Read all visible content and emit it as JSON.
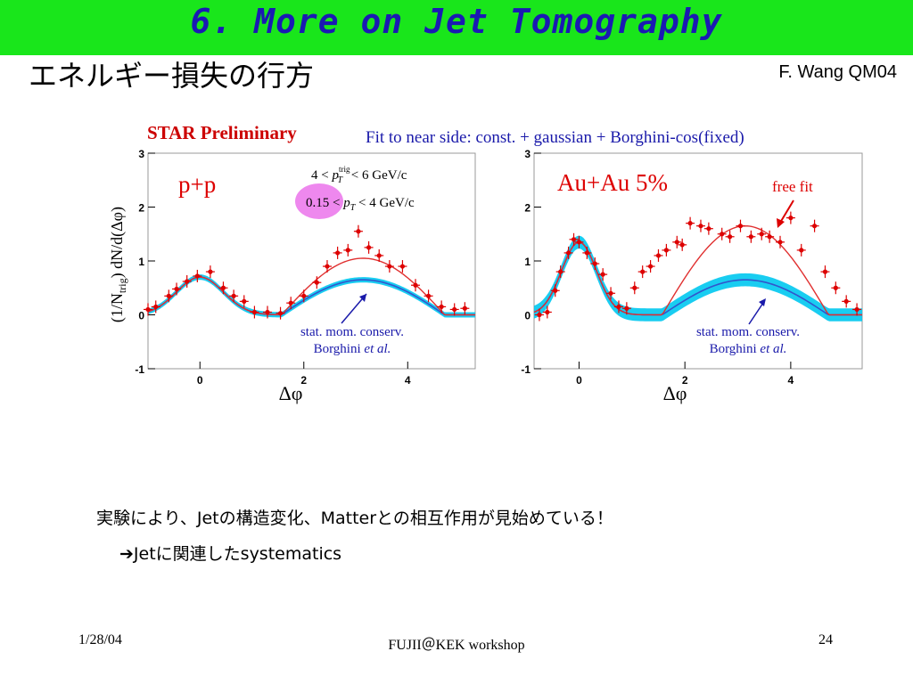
{
  "slide": {
    "title": "6. More on Jet Tomography",
    "subtitle": "エネルギー損失の行方",
    "author": "F. Wang QM04",
    "body_line1": "実験により、Jetの構造変化、Matterとの相互作用が見始めている！",
    "body_line2_arrow": "➔",
    "body_line2": "Jetに関連したsystematics",
    "footer_date": "1/28/04",
    "footer_center": "FUJII＠KEK workshop",
    "footer_page": "24"
  },
  "colors": {
    "title_bar": "#19e61b",
    "title_text": "#1a1ab3",
    "fit_red": "#e03030",
    "model_blue": "#3355cc",
    "band_cyan": "#00c8f0",
    "annotation_blue": "#1a1aaa",
    "highlight_pink": "#ee88ee"
  },
  "figure": {
    "header": "STAR Preliminary",
    "fit_note": "Fit to near side:  const. + gaussian + Borghini-cos(fixed)",
    "ylabel": "(1/N",
    "ylabel_sub": "trig",
    "ylabel_rest": ") dN/d(Δφ)",
    "xlabel": "Δφ",
    "cut1_pre": "4 < ",
    "cut1_p": "p",
    "cut1_sup": "trig",
    "cut1_sub": "T",
    "cut1_post": " < 6 GeV/c",
    "cut2_pre": "0.15 < ",
    "cut2_p": "p",
    "cut2_sub": "T",
    "cut2_post": " < 4 GeV/c",
    "model_note1": "stat. mom. conserv.",
    "model_note2_a": "Borghini ",
    "model_note2_b": "et al.",
    "free_fit": "free fit"
  },
  "chart_data": [
    {
      "type": "scatter",
      "label": "p+p",
      "x_ticks": [
        "0",
        "2",
        "4"
      ],
      "y_ticks": [
        "3",
        "2",
        "1",
        "0",
        "-1"
      ],
      "xlim": [
        -1.0,
        5.3
      ],
      "ylim": [
        -1,
        3
      ],
      "points": [
        {
          "x": -1.0,
          "y": 0.1
        },
        {
          "x": -0.85,
          "y": 0.15
        },
        {
          "x": -0.6,
          "y": 0.35
        },
        {
          "x": -0.45,
          "y": 0.48
        },
        {
          "x": -0.25,
          "y": 0.62
        },
        {
          "x": -0.05,
          "y": 0.72
        },
        {
          "x": 0.2,
          "y": 0.8
        },
        {
          "x": 0.45,
          "y": 0.5
        },
        {
          "x": 0.65,
          "y": 0.35
        },
        {
          "x": 0.85,
          "y": 0.25
        },
        {
          "x": 1.05,
          "y": 0.05
        },
        {
          "x": 1.3,
          "y": 0.05
        },
        {
          "x": 1.55,
          "y": 0.03
        },
        {
          "x": 1.75,
          "y": 0.22
        },
        {
          "x": 2.0,
          "y": 0.35
        },
        {
          "x": 2.25,
          "y": 0.6
        },
        {
          "x": 2.45,
          "y": 0.9
        },
        {
          "x": 2.65,
          "y": 1.15
        },
        {
          "x": 2.85,
          "y": 1.2
        },
        {
          "x": 3.05,
          "y": 1.55
        },
        {
          "x": 3.25,
          "y": 1.25
        },
        {
          "x": 3.45,
          "y": 1.1
        },
        {
          "x": 3.65,
          "y": 0.9
        },
        {
          "x": 3.9,
          "y": 0.9
        },
        {
          "x": 4.15,
          "y": 0.55
        },
        {
          "x": 4.4,
          "y": 0.35
        },
        {
          "x": 4.65,
          "y": 0.15
        },
        {
          "x": 4.9,
          "y": 0.1
        },
        {
          "x": 5.1,
          "y": 0.12
        }
      ],
      "near_peak": {
        "center": 0.0,
        "amplitude": 0.7,
        "sigma": 0.45
      },
      "free_fit_away_amplitude": 1.05,
      "model_away_amplitude": 0.65,
      "model_band_halfwidth": 0.05
    },
    {
      "type": "scatter",
      "label": "Au+Au 5%",
      "x_ticks": [
        "0",
        "2",
        "4"
      ],
      "y_ticks": [
        "3",
        "2",
        "1",
        "0",
        "-1"
      ],
      "xlim": [
        -0.85,
        5.35
      ],
      "ylim": [
        -1,
        3
      ],
      "points": [
        {
          "x": -0.75,
          "y": 0.0
        },
        {
          "x": -0.6,
          "y": 0.05
        },
        {
          "x": -0.45,
          "y": 0.45
        },
        {
          "x": -0.35,
          "y": 0.8
        },
        {
          "x": -0.2,
          "y": 1.15
        },
        {
          "x": -0.1,
          "y": 1.4
        },
        {
          "x": 0.0,
          "y": 1.35
        },
        {
          "x": 0.15,
          "y": 1.15
        },
        {
          "x": 0.3,
          "y": 0.95
        },
        {
          "x": 0.45,
          "y": 0.75
        },
        {
          "x": 0.6,
          "y": 0.4
        },
        {
          "x": 0.75,
          "y": 0.15
        },
        {
          "x": 0.9,
          "y": 0.12
        },
        {
          "x": 1.05,
          "y": 0.5
        },
        {
          "x": 1.2,
          "y": 0.8
        },
        {
          "x": 1.35,
          "y": 0.9
        },
        {
          "x": 1.5,
          "y": 1.1
        },
        {
          "x": 1.65,
          "y": 1.2
        },
        {
          "x": 1.85,
          "y": 1.35
        },
        {
          "x": 1.95,
          "y": 1.3
        },
        {
          "x": 2.1,
          "y": 1.7
        },
        {
          "x": 2.3,
          "y": 1.65
        },
        {
          "x": 2.45,
          "y": 1.6
        },
        {
          "x": 2.7,
          "y": 1.5
        },
        {
          "x": 2.85,
          "y": 1.45
        },
        {
          "x": 3.05,
          "y": 1.65
        },
        {
          "x": 3.25,
          "y": 1.45
        },
        {
          "x": 3.45,
          "y": 1.5
        },
        {
          "x": 3.6,
          "y": 1.45
        },
        {
          "x": 3.8,
          "y": 1.35
        },
        {
          "x": 4.0,
          "y": 1.8
        },
        {
          "x": 4.2,
          "y": 1.2
        },
        {
          "x": 4.45,
          "y": 1.65
        },
        {
          "x": 4.65,
          "y": 0.8
        },
        {
          "x": 4.85,
          "y": 0.5
        },
        {
          "x": 5.05,
          "y": 0.25
        },
        {
          "x": 5.25,
          "y": 0.1
        }
      ],
      "near_peak": {
        "center": 0.0,
        "amplitude": 1.35,
        "sigma": 0.33
      },
      "free_fit_away_amplitude": 1.65,
      "model_away_amplitude": 0.65,
      "model_band_halfwidth": 0.12
    }
  ]
}
